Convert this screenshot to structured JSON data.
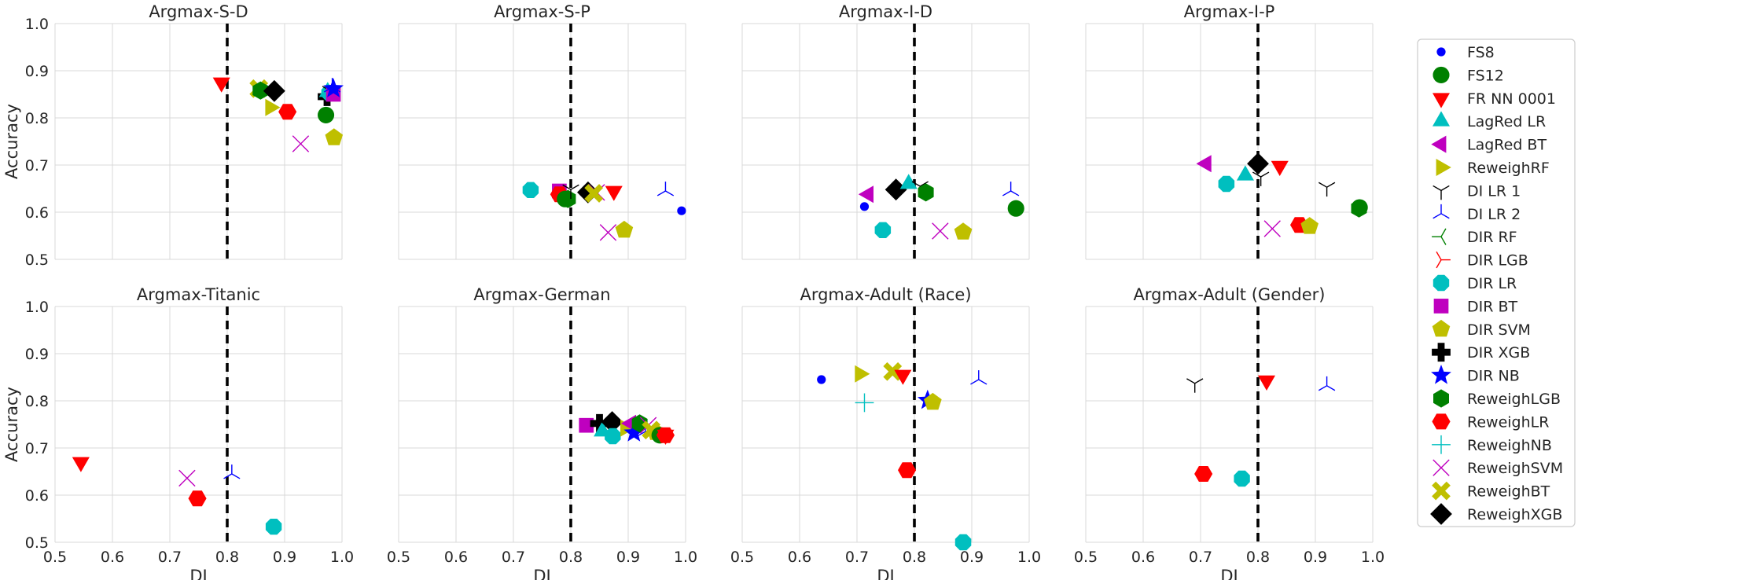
{
  "figure": {
    "xlabel": "DI",
    "ylabel": "Accuracy",
    "x_ticks": [
      "0.5",
      "0.6",
      "0.7",
      "0.8",
      "0.9",
      "1.0"
    ],
    "y_ticks": [
      "0.5",
      "0.6",
      "0.7",
      "0.8",
      "0.9",
      "1.0"
    ],
    "threshold": 0.8
  },
  "legend": [
    {
      "name": "FS8",
      "marker": "point",
      "color": "#0000ff"
    },
    {
      "name": "FS12",
      "marker": "circle",
      "color": "#008000"
    },
    {
      "name": "FR NN 0001",
      "marker": "triangle-down",
      "color": "#ff0000"
    },
    {
      "name": "LagRed LR",
      "marker": "triangle-up",
      "color": "#00bfbf"
    },
    {
      "name": "LagRed BT",
      "marker": "triangle-left",
      "color": "#bf00bf"
    },
    {
      "name": "ReweighRF",
      "marker": "triangle-right",
      "color": "#bfbf00"
    },
    {
      "name": "DI LR 1",
      "marker": "tri-down",
      "color": "#000000"
    },
    {
      "name": "DI LR 2",
      "marker": "tri-up",
      "color": "#0000ff"
    },
    {
      "name": "DIR RF",
      "marker": "tri-left",
      "color": "#008000"
    },
    {
      "name": "DIR LGB",
      "marker": "tri-right",
      "color": "#ff0000"
    },
    {
      "name": "DIR LR",
      "marker": "octagon",
      "color": "#00bfbf"
    },
    {
      "name": "DIR BT",
      "marker": "square",
      "color": "#bf00bf"
    },
    {
      "name": "DIR SVM",
      "marker": "pentagon",
      "color": "#bfbf00"
    },
    {
      "name": "DIR XGB",
      "marker": "plus-filled",
      "color": "#000000"
    },
    {
      "name": "DIR NB",
      "marker": "star",
      "color": "#0000ff"
    },
    {
      "name": "ReweighLGB",
      "marker": "hexagon",
      "color": "#008000"
    },
    {
      "name": "ReweighLR",
      "marker": "hexagon-flat",
      "color": "#ff0000"
    },
    {
      "name": "ReweighNB",
      "marker": "plus",
      "color": "#00bfbf"
    },
    {
      "name": "ReweighSVM",
      "marker": "x",
      "color": "#bf00bf"
    },
    {
      "name": "ReweighBT",
      "marker": "x-filled",
      "color": "#bfbf00"
    },
    {
      "name": "ReweighXGB",
      "marker": "diamond",
      "color": "#000000"
    }
  ],
  "chart_data": [
    {
      "type": "scatter",
      "title": "Argmax-S-D",
      "xlim": [
        0.5,
        1.0
      ],
      "ylim": [
        0.5,
        1.0
      ],
      "threshold": 0.8,
      "points": [
        {
          "s": "FR NN 0001",
          "x": 0.79,
          "y": 0.875
        },
        {
          "s": "ReweighBT",
          "x": 0.855,
          "y": 0.862
        },
        {
          "s": "ReweighLGB",
          "x": 0.858,
          "y": 0.858
        },
        {
          "s": "ReweighRF",
          "x": 0.875,
          "y": 0.822
        },
        {
          "s": "ReweighXGB",
          "x": 0.882,
          "y": 0.857
        },
        {
          "s": "ReweighLR",
          "x": 0.905,
          "y": 0.813
        },
        {
          "s": "ReweighSVM",
          "x": 0.928,
          "y": 0.745
        },
        {
          "s": "FS12",
          "x": 0.972,
          "y": 0.806
        },
        {
          "s": "DIR XGB",
          "x": 0.974,
          "y": 0.845
        },
        {
          "s": "LagRed LR",
          "x": 0.975,
          "y": 0.855
        },
        {
          "s": "DIR LR",
          "x": 0.978,
          "y": 0.853
        },
        {
          "s": "DI LR 1",
          "x": 0.98,
          "y": 0.857
        },
        {
          "s": "DIR BT",
          "x": 0.985,
          "y": 0.85
        },
        {
          "s": "DI LR 2",
          "x": 0.983,
          "y": 0.865
        },
        {
          "s": "DIR NB",
          "x": 0.985,
          "y": 0.862
        },
        {
          "s": "DIR SVM",
          "x": 0.986,
          "y": 0.758
        }
      ]
    },
    {
      "type": "scatter",
      "title": "Argmax-S-P",
      "xlim": [
        0.5,
        1.0
      ],
      "ylim": [
        0.5,
        1.0
      ],
      "threshold": 0.8,
      "points": [
        {
          "s": "DIR LR",
          "x": 0.73,
          "y": 0.647
        },
        {
          "s": "DIR BT",
          "x": 0.78,
          "y": 0.645
        },
        {
          "s": "ReweighLR",
          "x": 0.78,
          "y": 0.638
        },
        {
          "s": "FS12",
          "x": 0.79,
          "y": 0.628
        },
        {
          "s": "ReweighLGB",
          "x": 0.795,
          "y": 0.628
        },
        {
          "s": "DI LR 1",
          "x": 0.8,
          "y": 0.648
        },
        {
          "s": "ReweighXGB",
          "x": 0.83,
          "y": 0.642
        },
        {
          "s": "ReweighSVM",
          "x": 0.845,
          "y": 0.642
        },
        {
          "s": "ReweighBT",
          "x": 0.84,
          "y": 0.64
        },
        {
          "s": "FR NN 0001",
          "x": 0.875,
          "y": 0.645
        },
        {
          "s": "ReweighSVM",
          "x": 0.865,
          "y": 0.557
        },
        {
          "s": "DIR SVM",
          "x": 0.893,
          "y": 0.562
        },
        {
          "s": "DI LR 2",
          "x": 0.965,
          "y": 0.645
        },
        {
          "s": "FS8",
          "x": 0.993,
          "y": 0.603
        }
      ]
    },
    {
      "type": "scatter",
      "title": "Argmax-I-D",
      "xlim": [
        0.5,
        1.0
      ],
      "ylim": [
        0.5,
        1.0
      ],
      "threshold": 0.8,
      "points": [
        {
          "s": "FS8",
          "x": 0.713,
          "y": 0.612
        },
        {
          "s": "LagRed BT",
          "x": 0.72,
          "y": 0.638
        },
        {
          "s": "DIR LR",
          "x": 0.745,
          "y": 0.562
        },
        {
          "s": "ReweighXGB",
          "x": 0.768,
          "y": 0.648
        },
        {
          "s": "LagRed LR",
          "x": 0.79,
          "y": 0.66
        },
        {
          "s": "DI LR 1",
          "x": 0.81,
          "y": 0.655
        },
        {
          "s": "ReweighLGB",
          "x": 0.82,
          "y": 0.642
        },
        {
          "s": "ReweighSVM",
          "x": 0.845,
          "y": 0.56
        },
        {
          "s": "DIR SVM",
          "x": 0.885,
          "y": 0.558
        },
        {
          "s": "DI LR 2",
          "x": 0.968,
          "y": 0.645
        },
        {
          "s": "FS12",
          "x": 0.977,
          "y": 0.608
        }
      ]
    },
    {
      "type": "scatter",
      "title": "Argmax-I-P",
      "xlim": [
        0.5,
        1.0
      ],
      "ylim": [
        0.5,
        1.0
      ],
      "threshold": 0.8,
      "points": [
        {
          "s": "LagRed BT",
          "x": 0.71,
          "y": 0.703
        },
        {
          "s": "DIR LR",
          "x": 0.745,
          "y": 0.66
        },
        {
          "s": "LagRed LR",
          "x": 0.778,
          "y": 0.678
        },
        {
          "s": "ReweighXGB",
          "x": 0.8,
          "y": 0.703
        },
        {
          "s": "DI LR 1",
          "x": 0.805,
          "y": 0.675
        },
        {
          "s": "FR NN 0001",
          "x": 0.838,
          "y": 0.698
        },
        {
          "s": "ReweighSVM",
          "x": 0.825,
          "y": 0.565
        },
        {
          "s": "ReweighLR",
          "x": 0.872,
          "y": 0.573
        },
        {
          "s": "DIR SVM",
          "x": 0.89,
          "y": 0.57
        },
        {
          "s": "DI LR 1",
          "x": 0.92,
          "y": 0.653
        },
        {
          "s": "FS12",
          "x": 0.977,
          "y": 0.61
        },
        {
          "s": "ReweighLGB",
          "x": 0.976,
          "y": 0.608
        }
      ]
    },
    {
      "type": "scatter",
      "title": "Argmax-Titanic",
      "xlim": [
        0.5,
        1.0
      ],
      "ylim": [
        0.5,
        1.0
      ],
      "threshold": 0.8,
      "points": [
        {
          "s": "FR NN 0001",
          "x": 0.545,
          "y": 0.67
        },
        {
          "s": "ReweighSVM",
          "x": 0.73,
          "y": 0.636
        },
        {
          "s": "ReweighLR",
          "x": 0.748,
          "y": 0.593
        },
        {
          "s": "DI LR 2",
          "x": 0.808,
          "y": 0.645
        },
        {
          "s": "DIR LR",
          "x": 0.881,
          "y": 0.533
        }
      ]
    },
    {
      "type": "scatter",
      "title": "Argmax-German",
      "xlim": [
        0.5,
        1.0
      ],
      "ylim": [
        0.5,
        1.0
      ],
      "threshold": 0.8,
      "points": [
        {
          "s": "DIR BT",
          "x": 0.827,
          "y": 0.748
        },
        {
          "s": "DIR XGB",
          "x": 0.85,
          "y": 0.752
        },
        {
          "s": "LagRed LR",
          "x": 0.855,
          "y": 0.735
        },
        {
          "s": "ReweighXGB",
          "x": 0.872,
          "y": 0.755
        },
        {
          "s": "DIR LR",
          "x": 0.873,
          "y": 0.725
        },
        {
          "s": "ReweighRF",
          "x": 0.895,
          "y": 0.742
        },
        {
          "s": "LagRed BT",
          "x": 0.905,
          "y": 0.752
        },
        {
          "s": "DIR NB",
          "x": 0.91,
          "y": 0.732
        },
        {
          "s": "ReweighLGB",
          "x": 0.92,
          "y": 0.752
        },
        {
          "s": "DI LR 2",
          "x": 0.93,
          "y": 0.735
        },
        {
          "s": "ReweighSVM",
          "x": 0.935,
          "y": 0.748
        },
        {
          "s": "ReweighBT",
          "x": 0.94,
          "y": 0.738
        },
        {
          "s": "DIR SVM",
          "x": 0.948,
          "y": 0.733
        },
        {
          "s": "FS12",
          "x": 0.955,
          "y": 0.727
        },
        {
          "s": "ReweighLR",
          "x": 0.965,
          "y": 0.727
        },
        {
          "s": "FR NN 0001",
          "x": 0.965,
          "y": 0.728
        }
      ]
    },
    {
      "type": "scatter",
      "title": "Argmax-Adult (Race)",
      "xlim": [
        0.5,
        1.0
      ],
      "ylim": [
        0.5,
        1.0
      ],
      "threshold": 0.8,
      "points": [
        {
          "s": "FS8",
          "x": 0.638,
          "y": 0.845
        },
        {
          "s": "ReweighRF",
          "x": 0.705,
          "y": 0.857
        },
        {
          "s": "ReweighNB",
          "x": 0.713,
          "y": 0.796
        },
        {
          "s": "ReweighBT",
          "x": 0.762,
          "y": 0.862
        },
        {
          "s": "FR NN 0001",
          "x": 0.78,
          "y": 0.855
        },
        {
          "s": "ReweighLR",
          "x": 0.787,
          "y": 0.653
        },
        {
          "s": "DIR NB",
          "x": 0.823,
          "y": 0.801
        },
        {
          "s": "DIR SVM",
          "x": 0.832,
          "y": 0.797
        },
        {
          "s": "DIR LR",
          "x": 0.885,
          "y": 0.5
        },
        {
          "s": "DI LR 2",
          "x": 0.912,
          "y": 0.845
        }
      ]
    },
    {
      "type": "scatter",
      "title": "Argmax-Adult (Gender)",
      "xlim": [
        0.5,
        1.0
      ],
      "ylim": [
        0.5,
        1.0
      ],
      "threshold": 0.8,
      "points": [
        {
          "s": "DI LR 1",
          "x": 0.69,
          "y": 0.837
        },
        {
          "s": "ReweighLR",
          "x": 0.705,
          "y": 0.645
        },
        {
          "s": "DIR LR",
          "x": 0.772,
          "y": 0.635
        },
        {
          "s": "FR NN 0001",
          "x": 0.815,
          "y": 0.843
        },
        {
          "s": "DI LR 2",
          "x": 0.92,
          "y": 0.832
        }
      ]
    }
  ]
}
